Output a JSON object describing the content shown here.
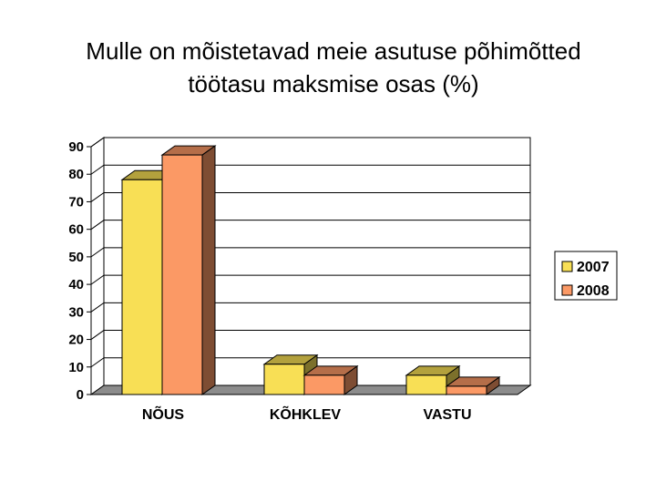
{
  "title_lines": [
    "Mulle on mõistetavad meie asutuse põhimõtted",
    "töötasu maksmise osas (%)"
  ],
  "colors": {
    "2007": "#f8df55",
    "2008": "#fb9965"
  },
  "chart_data": {
    "type": "bar",
    "title": "Mulle on mõistetavad meie asutuse põhimõtted töötasu maksmise osas (%)",
    "categories": [
      "NÕUS",
      "KÕHKLEV",
      "VASTU"
    ],
    "series": [
      {
        "name": "2007",
        "values": [
          78,
          11,
          7
        ]
      },
      {
        "name": "2008",
        "values": [
          87,
          7,
          3
        ]
      }
    ],
    "ylim": [
      0,
      90
    ],
    "yticks": [
      0,
      10,
      20,
      30,
      40,
      50,
      60,
      70,
      80,
      90
    ],
    "grid": true,
    "legend": "right",
    "style": "3d-column"
  }
}
